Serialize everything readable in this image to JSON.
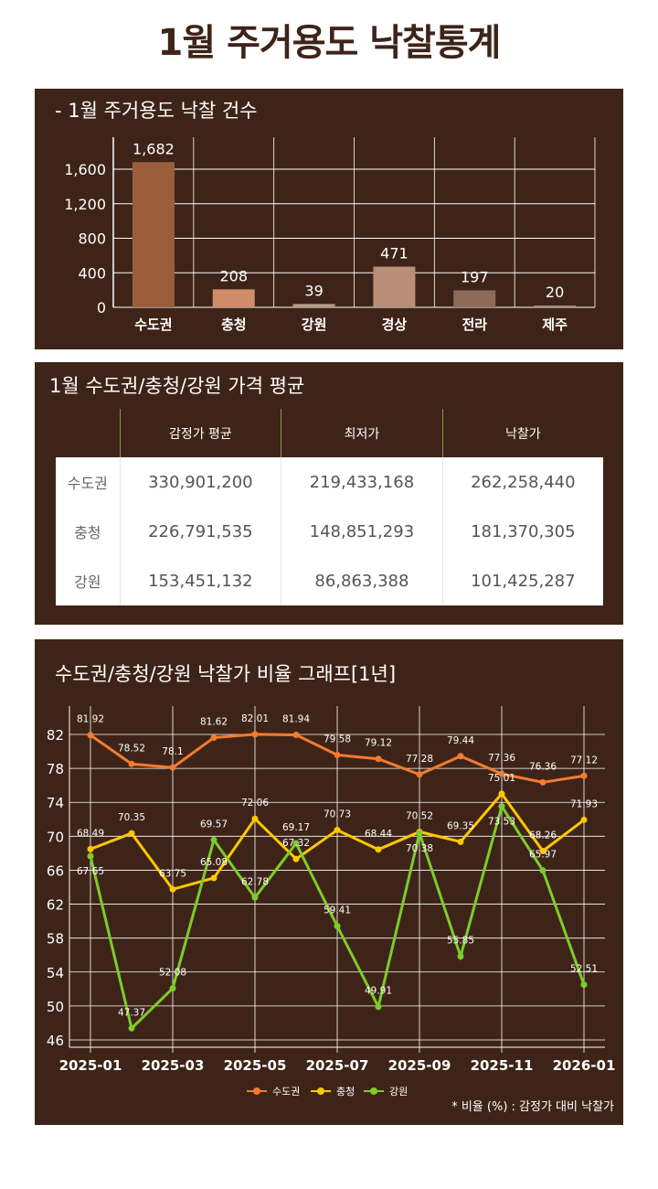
{
  "title": "1월 주거용도 낙찰통계",
  "bar_section": {
    "title": "- 1월 주거용도 낙찰 건수"
  },
  "table_section": {
    "title": "1월 수도권/충청/강원 가격 평균",
    "headers": [
      "",
      "감정가 평균",
      "최저가",
      "낙찰가"
    ],
    "rows": [
      [
        "수도권",
        "330,901,200",
        "219,433,168",
        "262,258,440"
      ],
      [
        "충청",
        "226,791,535",
        "148,851,293",
        "181,370,305"
      ],
      [
        "강원",
        "153,451,132",
        "86,863,388",
        "101,425,287"
      ]
    ]
  },
  "line_section": {
    "title": "수도권/충청/강원 낙찰가 비율 그래프[1년]",
    "note": "* 비율 (%) : 감정가 대비 낙찰가"
  },
  "chart_data": [
    {
      "type": "bar",
      "title": "- 1월 주거용도 낙찰 건수",
      "categories": [
        "수도권",
        "충청",
        "강원",
        "경상",
        "전라",
        "제주"
      ],
      "values": [
        1682,
        208,
        39,
        471,
        197,
        20
      ],
      "value_labels": [
        "1,682",
        "208",
        "39",
        "471",
        "197",
        "20"
      ],
      "colors": [
        "#9b5e3c",
        "#cf8d6a",
        "#b49a86",
        "#b98e78",
        "#8c6b5a",
        "#a58c7c"
      ],
      "yticks": [
        0,
        400,
        800,
        1200,
        1600
      ],
      "ytick_labels": [
        "0",
        "400",
        "800",
        "1,200",
        "1,600"
      ],
      "ylim": [
        0,
        1800
      ]
    },
    {
      "type": "line",
      "title": "수도권/충청/강원 낙찰가 비율 그래프[1년]",
      "x": [
        "2025-01",
        "2025-02",
        "2025-03",
        "2025-04",
        "2025-05",
        "2025-06",
        "2025-07",
        "2025-08",
        "2025-09",
        "2025-10",
        "2025-11",
        "2025-12",
        "2026-01"
      ],
      "xtick_labels": [
        "2025-01",
        "2025-03",
        "2025-05",
        "2025-07",
        "2025-09",
        "2025-11",
        "2026-01"
      ],
      "yticks": [
        46,
        50,
        54,
        58,
        62,
        66,
        70,
        74,
        78,
        82
      ],
      "ylim": [
        45,
        85
      ],
      "legend": "bottom",
      "series": [
        {
          "name": "수도권",
          "color": "#f47b30",
          "values": [
            81.92,
            78.52,
            78.1,
            81.62,
            82.01,
            81.94,
            79.58,
            79.12,
            77.28,
            79.44,
            77.36,
            76.36,
            77.12
          ]
        },
        {
          "name": "충청",
          "color": "#ffc800",
          "values": [
            68.49,
            70.35,
            63.75,
            65.08,
            72.06,
            67.32,
            70.73,
            68.44,
            70.52,
            69.35,
            75.01,
            68.26,
            71.93
          ]
        },
        {
          "name": "강원",
          "color": "#7ccc2a",
          "values": [
            67.65,
            47.37,
            52.08,
            69.57,
            62.78,
            69.17,
            59.41,
            49.91,
            70.38,
            55.85,
            73.53,
            65.97,
            52.51
          ]
        }
      ]
    }
  ]
}
